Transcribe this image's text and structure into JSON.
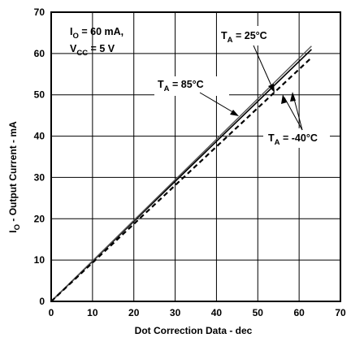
{
  "chart_data": {
    "type": "line",
    "xlabel": "Dot Correction Data - dec",
    "ylabel": {
      "main": "I",
      "sub": "O",
      "rest": " - Output Current - mA"
    },
    "xlim": [
      0,
      70
    ],
    "ylim": [
      0,
      70
    ],
    "xticks": [
      0,
      10,
      20,
      30,
      40,
      50,
      60,
      70
    ],
    "yticks": [
      0,
      10,
      20,
      30,
      40,
      50,
      60,
      70
    ],
    "grid": true,
    "conditions": [
      {
        "main": "I",
        "sub": "O",
        "rest": " = 60 mA,"
      },
      {
        "main": "V",
        "sub": "CC",
        "rest": " = 5 V"
      }
    ],
    "series": [
      {
        "name": {
          "main": "T",
          "sub": "A",
          "rest": " = 25°C"
        },
        "style": "solid",
        "color": "#000000",
        "x": [
          0,
          63
        ],
        "y": [
          0,
          61.0
        ]
      },
      {
        "name": {
          "main": "T",
          "sub": "A",
          "rest": " = 85°C"
        },
        "style": "solid-gray",
        "color": "#555555",
        "x": [
          0,
          63
        ],
        "y": [
          0,
          61.8
        ]
      },
      {
        "name": {
          "main": "T",
          "sub": "A",
          "rest": " = -40°C"
        },
        "style": "dashed",
        "color": "#000000",
        "x": [
          0,
          63
        ],
        "y": [
          0,
          59.0
        ]
      }
    ]
  }
}
